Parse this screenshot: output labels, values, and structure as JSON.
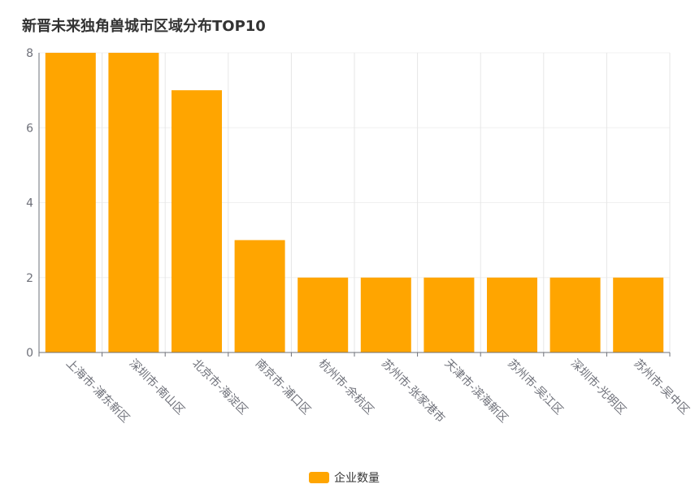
{
  "chart_data": {
    "type": "bar",
    "title": "新晋未来独角兽城市区域分布TOP10",
    "categories": [
      "上海市-浦东新区",
      "深圳市-南山区",
      "北京市-海淀区",
      "南京市-浦口区",
      "杭州市-余杭区",
      "苏州市-张家港市",
      "天津市-滨海新区",
      "苏州市-吴江区",
      "深圳市-光明区",
      "苏州市-吴中区"
    ],
    "series": [
      {
        "name": "企业数量",
        "values": [
          8,
          8,
          7,
          3,
          2,
          2,
          2,
          2,
          2,
          2
        ],
        "color": "#FFA500"
      }
    ],
    "ylim": [
      0,
      8
    ],
    "yticks": [
      0,
      2,
      4,
      6,
      8
    ],
    "grid": true,
    "legend_position": "bottom-center"
  }
}
